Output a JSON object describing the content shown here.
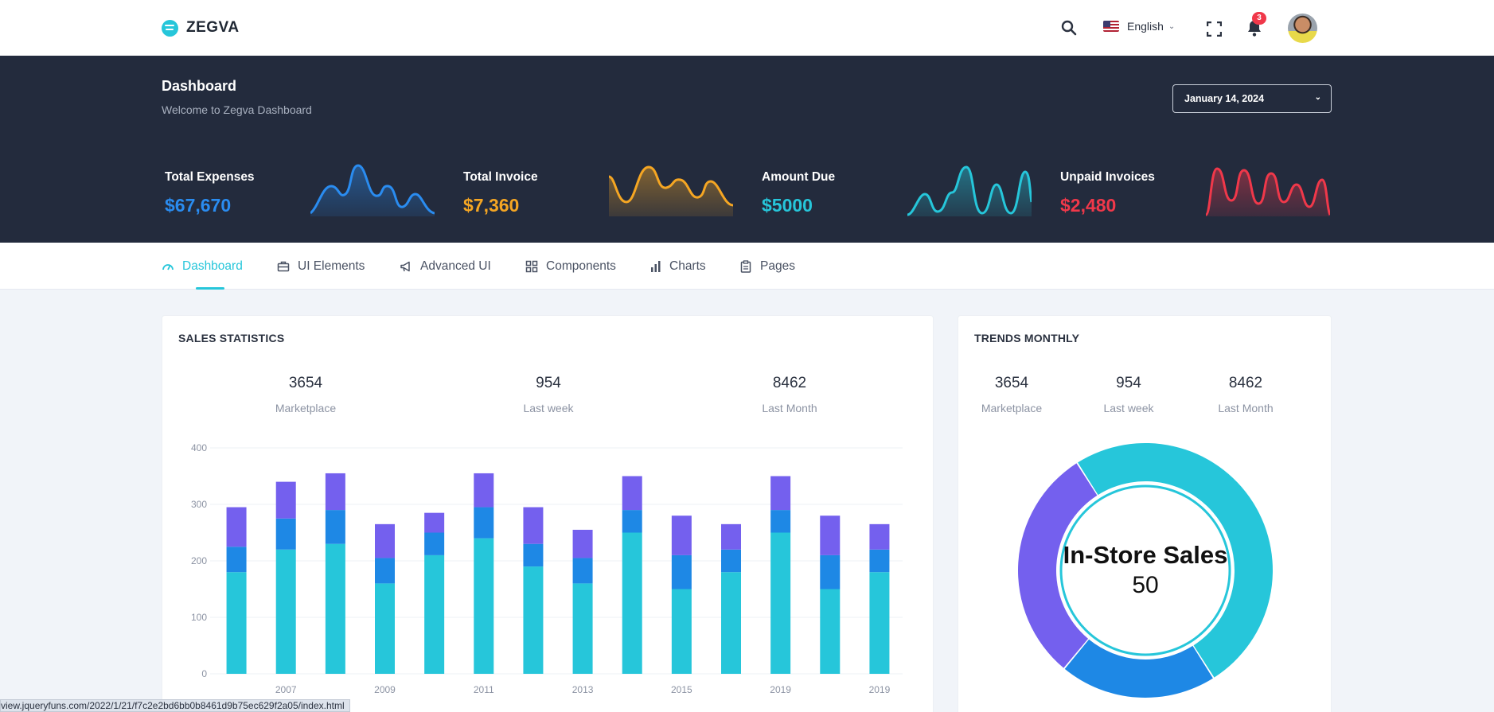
{
  "brand": {
    "name": "ZEGVA"
  },
  "topbar": {
    "language": "English",
    "notifications_count": "3"
  },
  "hero": {
    "title": "Dashboard",
    "subtitle": "Welcome to Zegva Dashboard",
    "date": "January 14, 2024",
    "stats": [
      {
        "label": "Total Expenses",
        "value": "$67,670",
        "color": "#2a8cf0"
      },
      {
        "label": "Total Invoice",
        "value": "$7,360",
        "color": "#f5a623"
      },
      {
        "label": "Amount Due",
        "value": "$5000",
        "color": "#26c6da"
      },
      {
        "label": "Unpaid Invoices",
        "value": "$2,480",
        "color": "#f0384a"
      }
    ]
  },
  "nav": {
    "items": [
      {
        "label": "Dashboard",
        "icon": "gauge-icon",
        "active": true
      },
      {
        "label": "UI Elements",
        "icon": "briefcase-icon"
      },
      {
        "label": "Advanced UI",
        "icon": "megaphone-icon"
      },
      {
        "label": "Components",
        "icon": "grid-icon"
      },
      {
        "label": "Charts",
        "icon": "bar-chart-icon"
      },
      {
        "label": "Pages",
        "icon": "clipboard-icon"
      }
    ]
  },
  "sales": {
    "title": "SALES STATISTICS",
    "kpis": [
      {
        "value": "3654",
        "label": "Marketplace"
      },
      {
        "value": "954",
        "label": "Last week"
      },
      {
        "value": "8462",
        "label": "Last Month"
      }
    ]
  },
  "trends": {
    "title": "TRENDS MONTHLY",
    "kpis": [
      {
        "value": "3654",
        "label": "Marketplace"
      },
      {
        "value": "954",
        "label": "Last week"
      },
      {
        "value": "8462",
        "label": "Last Month"
      }
    ],
    "center_label": "In-Store Sales",
    "center_value": "50"
  },
  "chart_data": [
    {
      "type": "bar",
      "stacked": true,
      "ylim": [
        0,
        400
      ],
      "yticks": [
        0,
        100,
        200,
        300,
        400
      ],
      "xtick_labels": [
        "2007",
        "2009",
        "2011",
        "2013",
        "2015",
        "2019",
        "2019"
      ],
      "categories_count": 14,
      "series": [
        {
          "color": "#26c6da",
          "values": [
            180,
            220,
            230,
            160,
            210,
            240,
            190,
            160,
            250,
            150,
            180,
            250,
            150,
            180
          ]
        },
        {
          "color": "#1e88e5",
          "values": [
            45,
            55,
            60,
            45,
            40,
            55,
            40,
            45,
            40,
            60,
            40,
            40,
            60,
            40
          ]
        },
        {
          "color": "#7460ee",
          "values": [
            70,
            65,
            65,
            60,
            35,
            60,
            65,
            50,
            60,
            70,
            45,
            60,
            70,
            45
          ]
        }
      ],
      "grid": true
    },
    {
      "type": "pie",
      "donut": true,
      "slices": [
        {
          "label": "In-Store Sales",
          "value": 50,
          "color": "#26c6da"
        },
        {
          "value": 20,
          "color": "#1e88e5"
        },
        {
          "value": 30,
          "color": "#7460ee"
        }
      ]
    }
  ],
  "statusbar": {
    "url": "view.jqueryfuns.com/2022/1/21/f7c2e2bd6bb0b8461d9b75ec629f2a05/index.html"
  }
}
